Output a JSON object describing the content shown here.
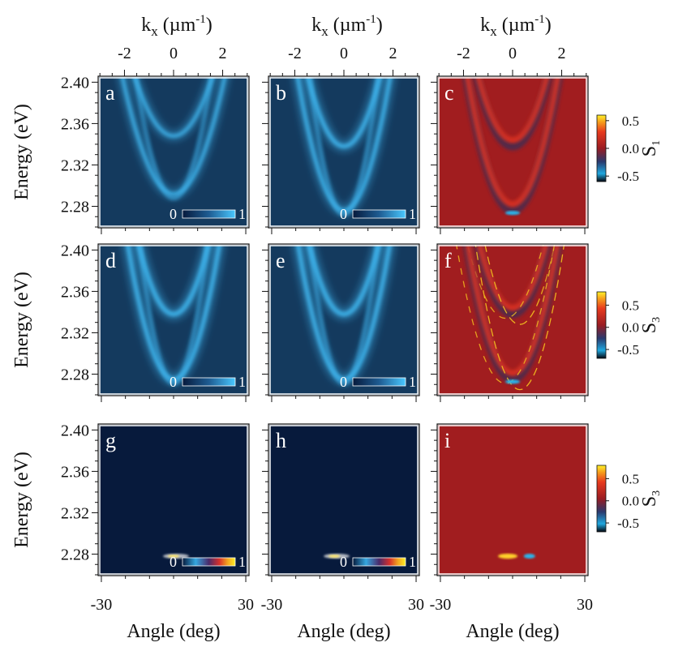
{
  "chart_data": {
    "type": "heatmap",
    "layout": "3x3 grid of angle-resolved photoluminescence maps",
    "x_axis": {
      "label": "Angle (deg)",
      "range": [
        -31,
        31
      ],
      "ticks": [
        -30,
        30
      ],
      "minor_step": 10
    },
    "top_axis": {
      "label_main": "k",
      "label_sub": "x",
      "label_unit": " (µm",
      "label_sup": "-1",
      "label_close": ")",
      "ticks": [
        -2,
        0,
        2
      ]
    },
    "y_axis": {
      "label": "Energy (eV)",
      "range": [
        2.26,
        2.405
      ],
      "ticks": [
        "2.28",
        "2.32",
        "2.36",
        "2.40"
      ]
    },
    "intensity_colorbar": {
      "min_label": "0",
      "max_label": "1"
    },
    "stokes_colorbars": [
      {
        "panel": "c",
        "name": "S",
        "sub": "1",
        "ticks": [
          "0.5",
          "0.0",
          "-0.5"
        ],
        "range": [
          -0.6,
          0.6
        ]
      },
      {
        "panel": "f",
        "name": "S",
        "sub": "3",
        "ticks": [
          "0.5",
          "0.0",
          "-0.5"
        ],
        "range": [
          -0.7,
          0.8
        ]
      },
      {
        "panel": "i",
        "name": "S",
        "sub": "3",
        "ticks": [
          "0.5",
          "0.0",
          "-0.5"
        ],
        "range": [
          -0.7,
          0.8
        ]
      }
    ],
    "panels": [
      {
        "letter": "a",
        "kind": "intensity",
        "bands": [
          {
            "e0": 2.348,
            "curv": 0.00022,
            "w": 8
          },
          {
            "e0": 2.292,
            "curv": 0.00025,
            "w": 8
          }
        ]
      },
      {
        "letter": "b",
        "kind": "intensity",
        "bands": [
          {
            "e0": 2.338,
            "curv": 0.0003,
            "w": 10
          },
          {
            "e0": 2.276,
            "curv": 0.00035,
            "w": 9
          }
        ]
      },
      {
        "letter": "c",
        "kind": "stokes"
      },
      {
        "letter": "d",
        "kind": "intensity",
        "bands": [
          {
            "e0": 2.338,
            "curv": 0.00032,
            "w": 11
          },
          {
            "e0": 2.275,
            "curv": 0.00036,
            "w": 10
          }
        ]
      },
      {
        "letter": "e",
        "kind": "intensity",
        "bands": [
          {
            "e0": 2.338,
            "curv": 0.00032,
            "w": 11
          },
          {
            "e0": 2.275,
            "curv": 0.00036,
            "w": 10
          }
        ]
      },
      {
        "letter": "f",
        "kind": "stokes"
      },
      {
        "letter": "g",
        "kind": "lasing",
        "spot_energy": 2.278,
        "spot_angle": 1
      },
      {
        "letter": "h",
        "kind": "lasing",
        "spot_energy": 2.278,
        "spot_angle": -3
      },
      {
        "letter": "i",
        "kind": "stokes-lasing",
        "spot_energy": 2.278
      }
    ]
  },
  "colors": {
    "intensity_bg": "#143a5e",
    "intensity_band": "#3fb2ea",
    "lasing_bg": "#071a3c",
    "stokes_bg": "#a11d1f"
  }
}
